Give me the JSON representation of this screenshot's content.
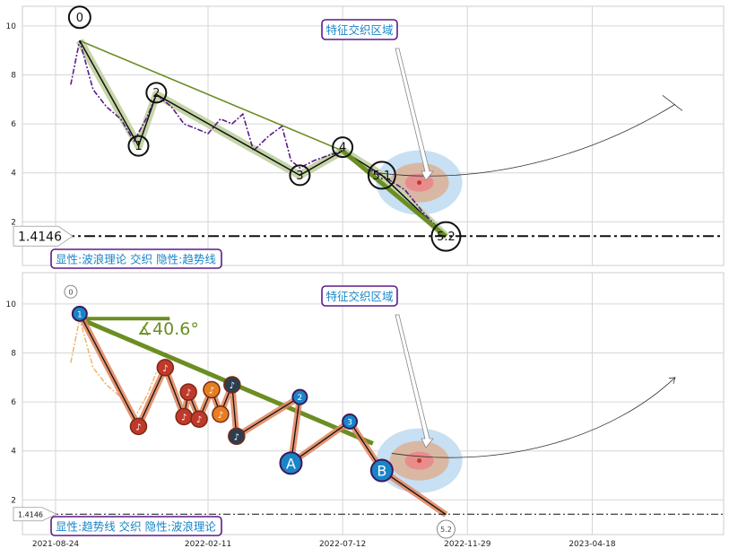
{
  "chart_data": [
    {
      "type": "line",
      "panel": "top",
      "x_ticks": [],
      "y_ticks": [
        "2",
        "4",
        "6",
        "8",
        "10"
      ],
      "ylim": [
        1.0,
        11.1
      ],
      "xlim": [
        "2021-08-06",
        "2023-08-06"
      ],
      "grid": true,
      "reference_line": {
        "label": "1.4146",
        "y": 1.4146,
        "style": "dash-dot"
      },
      "callout": "特征交织区域",
      "legend_box": "显性:波浪理论 交织 隐性:趋势线",
      "wave_points": [
        {
          "label": "0",
          "x": "2021-09-20",
          "y": 9.4
        },
        {
          "label": "1",
          "x": "2021-11-25",
          "y": 5.1
        },
        {
          "label": "2",
          "x": "2021-12-15",
          "y": 7.2
        },
        {
          "label": "3",
          "x": "2022-05-25",
          "y": 3.9
        },
        {
          "label": "4",
          "x": "2022-07-12",
          "y": 4.9
        },
        {
          "label": "5.1",
          "x": "2022-08-25",
          "y": 3.9
        },
        {
          "label": "5.2",
          "x": "2022-11-05",
          "y": 1.4
        }
      ],
      "price_series": [
        {
          "x": "2021-09-10",
          "y": 7.6
        },
        {
          "x": "2021-09-20",
          "y": 9.4
        },
        {
          "x": "2021-10-05",
          "y": 7.4
        },
        {
          "x": "2021-10-20",
          "y": 6.7
        },
        {
          "x": "2021-11-05",
          "y": 6.2
        },
        {
          "x": "2021-11-20",
          "y": 5.3
        },
        {
          "x": "2021-12-05",
          "y": 6.3
        },
        {
          "x": "2021-12-15",
          "y": 7.2
        },
        {
          "x": "2022-01-01",
          "y": 6.7
        },
        {
          "x": "2022-01-15",
          "y": 6.0
        },
        {
          "x": "2022-01-29",
          "y": 5.8
        },
        {
          "x": "2022-02-11",
          "y": 5.6
        },
        {
          "x": "2022-02-25",
          "y": 6.2
        },
        {
          "x": "2022-03-10",
          "y": 6.0
        },
        {
          "x": "2022-03-22",
          "y": 6.4
        },
        {
          "x": "2022-04-03",
          "y": 4.9
        },
        {
          "x": "2022-04-20",
          "y": 5.5
        },
        {
          "x": "2022-05-05",
          "y": 5.9
        },
        {
          "x": "2022-05-15",
          "y": 4.5
        },
        {
          "x": "2022-05-25",
          "y": 4.2
        },
        {
          "x": "2022-06-10",
          "y": 4.5
        },
        {
          "x": "2022-06-25",
          "y": 4.7
        },
        {
          "x": "2022-07-12",
          "y": 4.9
        },
        {
          "x": "2022-07-30",
          "y": 4.3
        },
        {
          "x": "2022-08-25",
          "y": 3.9
        },
        {
          "x": "2022-09-20",
          "y": 3.3
        },
        {
          "x": "2022-10-10",
          "y": 2.4
        },
        {
          "x": "2022-11-05",
          "y": 1.4
        }
      ],
      "trend_line": [
        {
          "x": "2021-09-20",
          "y": 9.4
        },
        {
          "x": "2022-07-12",
          "y": 4.9
        },
        {
          "x": "2022-11-05",
          "y": 1.4
        }
      ],
      "focus_point": {
        "x": "2022-10-06",
        "y": 3.6
      },
      "projection": [
        {
          "x": "2022-08-20",
          "y": 4.0
        },
        {
          "x": "2023-01-01",
          "y": 3.4
        },
        {
          "x": "2023-05-01",
          "y": 5.0
        },
        {
          "x": "2023-07-20",
          "y": 6.8
        }
      ]
    },
    {
      "type": "line",
      "panel": "bottom",
      "x_ticks": [
        "2021-08-24",
        "2022-02-11",
        "2022-07-12",
        "2022-11-29",
        "2023-04-18"
      ],
      "y_ticks": [
        "2",
        "4",
        "6",
        "8",
        "10"
      ],
      "ylim": [
        1.0,
        11.1
      ],
      "xlim": [
        "2021-08-06",
        "2023-08-06"
      ],
      "grid": true,
      "reference_line": {
        "label": "1.4146",
        "y": 1.4146,
        "style": "dash-dot"
      },
      "callout": "特征交织区域",
      "legend_box": "显性:趋势线 交织 隐性:波浪理论",
      "angle_label": "∡40.6°",
      "trend_points": [
        {
          "label": "1",
          "x": "2021-09-20",
          "y": 9.6
        },
        {
          "label": "2",
          "x": "2022-05-25",
          "y": 6.2
        },
        {
          "label": "3",
          "x": "2022-07-20",
          "y": 5.2
        },
        {
          "label": "A",
          "x": "2022-05-15",
          "y": 3.5
        },
        {
          "label": "B",
          "x": "2022-08-25",
          "y": 3.2
        }
      ],
      "hollow_points": [
        {
          "label": "0",
          "x": "2021-09-10",
          "y": 10.5
        },
        {
          "label": "5.2",
          "x": "2022-11-05",
          "y": 0.8
        }
      ],
      "note_markers": [
        {
          "x": "2021-11-25",
          "y": 5.0
        },
        {
          "x": "2021-12-25",
          "y": 7.4
        },
        {
          "x": "2022-01-15",
          "y": 5.4
        },
        {
          "x": "2022-01-20",
          "y": 6.4
        },
        {
          "x": "2022-02-01",
          "y": 5.3
        },
        {
          "x": "2022-02-15",
          "y": 6.5
        },
        {
          "x": "2022-02-25",
          "y": 5.5
        },
        {
          "x": "2022-03-10",
          "y": 6.7
        },
        {
          "x": "2022-03-15",
          "y": 4.6
        }
      ],
      "thick_trend": [
        {
          "x": "2021-09-20",
          "y": 9.4
        },
        {
          "x": "2022-08-15",
          "y": 4.3
        }
      ],
      "horizontal_ref": [
        {
          "x": "2021-09-20",
          "y": 9.4
        },
        {
          "x": "2021-12-30",
          "y": 9.4
        }
      ],
      "price_series": [
        {
          "x": "2021-09-10",
          "y": 7.6
        },
        {
          "x": "2021-09-20",
          "y": 9.4
        },
        {
          "x": "2021-10-05",
          "y": 7.4
        },
        {
          "x": "2021-10-20",
          "y": 6.7
        },
        {
          "x": "2021-11-05",
          "y": 6.2
        },
        {
          "x": "2021-11-20",
          "y": 5.3
        },
        {
          "x": "2021-12-05",
          "y": 6.3
        },
        {
          "x": "2021-12-15",
          "y": 7.2
        }
      ],
      "focus_point": {
        "x": "2022-10-06",
        "y": 3.6
      },
      "projection": [
        {
          "x": "2022-09-05",
          "y": 3.9
        },
        {
          "x": "2023-01-15",
          "y": 3.2
        },
        {
          "x": "2023-05-15",
          "y": 4.7
        },
        {
          "x": "2023-07-20",
          "y": 7.0
        }
      ]
    }
  ]
}
